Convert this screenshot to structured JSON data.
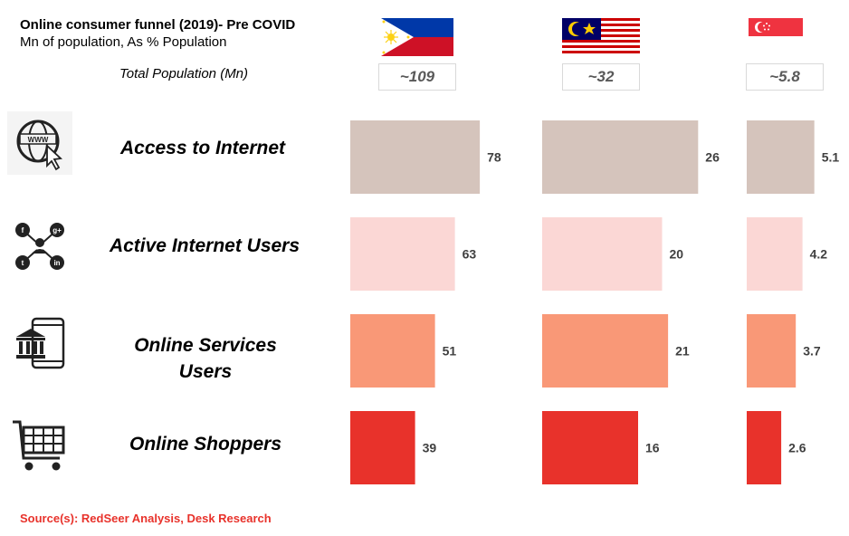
{
  "header": {
    "title": "Online consumer funnel (2019)- Pre COVID",
    "subtitle": "Mn of population, As % Population",
    "population_label": "Total Population (Mn)"
  },
  "countries": [
    {
      "flag_icon": "philippines-flag-icon",
      "population": "~109"
    },
    {
      "flag_icon": "malaysia-flag-icon",
      "population": "~32"
    },
    {
      "flag_icon": "singapore-flag-icon",
      "population": "~5.8"
    }
  ],
  "stages": [
    {
      "label": "Access to Internet",
      "icon": "www-globe-cursor-icon",
      "color": "#d5c4bc"
    },
    {
      "label": "Active Internet Users",
      "icon": "social-network-user-icon",
      "color": "#fbd7d5"
    },
    {
      "label": "Online Services Users",
      "icon": "bank-phone-icon",
      "color": "#f99877"
    },
    {
      "label": "Online Shoppers",
      "icon": "shopping-cart-icon",
      "color": "#e8322b"
    }
  ],
  "chart_data": {
    "type": "bar",
    "categories": [
      "Access to Internet",
      "Active Internet Users",
      "Online Services Users",
      "Online Shoppers"
    ],
    "series": [
      {
        "values": [
          78,
          63,
          51,
          39
        ],
        "labels": [
          "78",
          "63",
          "51",
          "39"
        ]
      },
      {
        "values": [
          26,
          20,
          21,
          16
        ],
        "labels": [
          "26",
          "20",
          "21",
          "16"
        ]
      },
      {
        "values": [
          5.1,
          4.2,
          3.7,
          2.6
        ],
        "labels": [
          "5.1",
          "4.2",
          "3.7",
          "2.6"
        ]
      }
    ],
    "series_population": [
      109,
      32,
      5.8
    ]
  },
  "source": "Source(s): RedSeer Analysis, Desk Research"
}
